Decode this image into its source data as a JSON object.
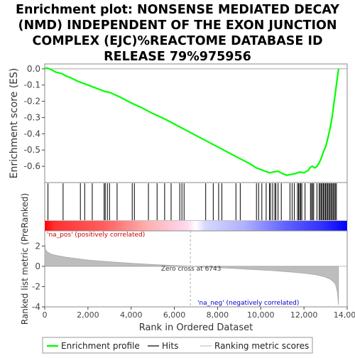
{
  "chart_data": {
    "type": "line",
    "title_lines": [
      "Enrichment plot: NONSENSE MEDIATED DECAY",
      "(NMD) INDEPENDENT OF THE EXON JUNCTION",
      "COMPLEX (EJC)%REACTOME DATABASE ID",
      "RELEASE 79%975956"
    ],
    "es_panel": {
      "ylabel": "Enrichment score (ES)",
      "ylim": [
        -0.7,
        0.03
      ],
      "yticks": [
        0.0,
        -0.1,
        -0.2,
        -0.3,
        -0.4,
        -0.5,
        -0.6
      ],
      "ytick_labels": [
        "0.0",
        "-0.1",
        "-0.2",
        "-0.3",
        "-0.4",
        "-0.5",
        "-0.6"
      ],
      "line_color": "#00ff00",
      "curve": {
        "x": [
          0,
          100,
          300,
          500,
          800,
          1000,
          1200,
          1500,
          1700,
          2000,
          2300,
          2600,
          2800,
          3000,
          3500,
          4000,
          4500,
          5000,
          5500,
          6000,
          6500,
          7000,
          7500,
          8000,
          8500,
          9000,
          9500,
          9800,
          10000,
          10200,
          10400,
          10600,
          10800,
          11000,
          11200,
          11400,
          11600,
          11800,
          12000,
          12200,
          12300,
          12400,
          12500,
          12600,
          12700,
          12800,
          12900,
          13000,
          13100,
          13200,
          13300,
          13400,
          13450,
          13500,
          13550,
          13600
        ],
        "y": [
          0.0,
          0.005,
          -0.005,
          -0.02,
          -0.03,
          -0.045,
          -0.055,
          -0.075,
          -0.085,
          -0.1,
          -0.115,
          -0.13,
          -0.14,
          -0.145,
          -0.175,
          -0.21,
          -0.24,
          -0.275,
          -0.305,
          -0.34,
          -0.375,
          -0.41,
          -0.445,
          -0.48,
          -0.515,
          -0.55,
          -0.585,
          -0.61,
          -0.62,
          -0.63,
          -0.64,
          -0.635,
          -0.63,
          -0.645,
          -0.655,
          -0.65,
          -0.645,
          -0.635,
          -0.64,
          -0.625,
          -0.605,
          -0.6,
          -0.61,
          -0.6,
          -0.58,
          -0.55,
          -0.51,
          -0.48,
          -0.43,
          -0.37,
          -0.3,
          -0.2,
          -0.15,
          -0.1,
          -0.05,
          0.0
        ]
      }
    },
    "hits": [
      150,
      850,
      1650,
      1850,
      2200,
      2750,
      2800,
      2900,
      3000,
      3350,
      4050,
      4150,
      4800,
      5200,
      5550,
      5850,
      6250,
      6350,
      6450,
      7450,
      7800,
      8050,
      8200,
      8850,
      9050,
      9800,
      9900,
      10050,
      10250,
      10400,
      10450,
      10550,
      10650,
      10700,
      10800,
      10950,
      11350,
      11450,
      11550,
      11700,
      11750,
      11800,
      11850,
      11900,
      12050,
      12300,
      12350,
      12400,
      12450,
      12600,
      12700,
      12750,
      12800,
      12850,
      12900,
      12950,
      13000,
      13050,
      13100,
      13150,
      13200,
      13250,
      13300,
      13350,
      13400,
      13450,
      13500
    ],
    "metric_panel": {
      "ylabel": "Ranked list metric (PreRanked)",
      "ylim": [
        -4,
        3.5
      ],
      "yticks": [
        2,
        0,
        -2,
        -4
      ],
      "ytick_labels": [
        "2",
        "0",
        "-2",
        "-4"
      ],
      "x": [
        0,
        30,
        100,
        300,
        600,
        1000,
        1500,
        2000,
        3000,
        4000,
        5000,
        6000,
        6743,
        7500,
        8500,
        9500,
        10500,
        11500,
        12000,
        12500,
        12800,
        13000,
        13200,
        13350,
        13450,
        13500,
        13550,
        13600
      ],
      "y": [
        2.5,
        1.7,
        1.45,
        1.2,
        1.05,
        0.9,
        0.75,
        0.62,
        0.45,
        0.3,
        0.18,
        0.08,
        0.0,
        -0.08,
        -0.18,
        -0.3,
        -0.42,
        -0.58,
        -0.68,
        -0.82,
        -0.95,
        -1.08,
        -1.25,
        -1.5,
        -1.75,
        -2.1,
        -2.6,
        -3.8
      ]
    },
    "zero_cross": 6743,
    "zero_cross_label": "Zero cross at 6743",
    "pos_label": "'na_pos' (positively correlated)",
    "neg_label": "'na_neg' (negatively correlated)",
    "xlabel": "Rank in Ordered Dataset",
    "xlim": [
      0,
      14000
    ],
    "xticks": [
      0,
      2000,
      4000,
      6000,
      8000,
      10000,
      12000,
      14000
    ],
    "xtick_labels": [
      "0",
      "2,000",
      "4,000",
      "6,000",
      "8,000",
      "10,000",
      "12,000",
      "14,000"
    ],
    "heatmap_colors": {
      "high": "#ff0000",
      "mid": "#ffffff",
      "low": "#0000ff"
    },
    "legend": [
      "Enrichment profile",
      "Hits",
      "Ranking metric scores"
    ],
    "legend_colors": [
      "#00ff00",
      "#000000",
      "#c0c0c0"
    ]
  }
}
